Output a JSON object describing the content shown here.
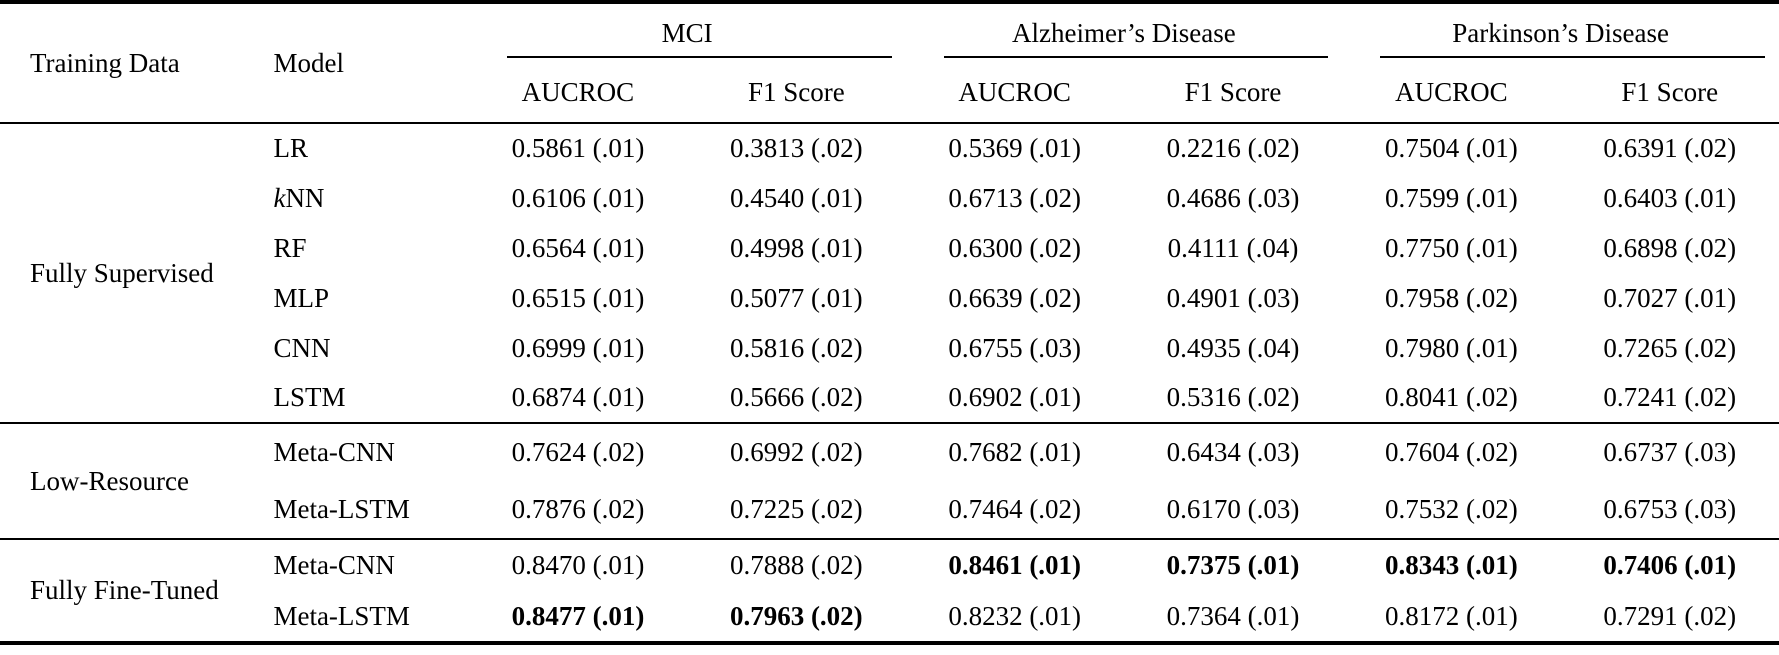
{
  "table": {
    "headers": {
      "training_data": "Training Data",
      "model": "Model",
      "groups": [
        {
          "label": "MCI",
          "sub": [
            "AUCROC",
            "F1 Score"
          ]
        },
        {
          "label": "Alzheimer’s Disease",
          "sub": [
            "AUCROC",
            "F1 Score"
          ]
        },
        {
          "label": "Parkinson’s Disease",
          "sub": [
            "AUCROC",
            "F1 Score"
          ]
        }
      ]
    },
    "row_groups": [
      {
        "label": "Fully Supervised",
        "rows": [
          {
            "model": "LR",
            "values": [
              "0.5861 (.01)",
              "0.3813 (.02)",
              "0.5369 (.01)",
              "0.2216 (.02)",
              "0.7504 (.01)",
              "0.6391 (.02)"
            ],
            "bold": [
              false,
              false,
              false,
              false,
              false,
              false
            ]
          },
          {
            "model": "kNN",
            "values": [
              "0.6106 (.01)",
              "0.4540 (.01)",
              "0.6713 (.02)",
              "0.4686 (.03)",
              "0.7599 (.01)",
              "0.6403 (.01)"
            ],
            "bold": [
              false,
              false,
              false,
              false,
              false,
              false
            ]
          },
          {
            "model": "RF",
            "values": [
              "0.6564 (.01)",
              "0.4998 (.01)",
              "0.6300 (.02)",
              "0.4111 (.04)",
              "0.7750 (.01)",
              "0.6898 (.02)"
            ],
            "bold": [
              false,
              false,
              false,
              false,
              false,
              false
            ]
          },
          {
            "model": "MLP",
            "values": [
              "0.6515 (.01)",
              "0.5077 (.01)",
              "0.6639 (.02)",
              "0.4901 (.03)",
              "0.7958 (.02)",
              "0.7027 (.01)"
            ],
            "bold": [
              false,
              false,
              false,
              false,
              false,
              false
            ]
          },
          {
            "model": "CNN",
            "values": [
              "0.6999 (.01)",
              "0.5816 (.02)",
              "0.6755 (.03)",
              "0.4935 (.04)",
              "0.7980 (.01)",
              "0.7265 (.02)"
            ],
            "bold": [
              false,
              false,
              false,
              false,
              false,
              false
            ]
          },
          {
            "model": "LSTM",
            "values": [
              "0.6874 (.01)",
              "0.5666 (.02)",
              "0.6902 (.01)",
              "0.5316 (.02)",
              "0.8041 (.02)",
              "0.7241 (.02)"
            ],
            "bold": [
              false,
              false,
              false,
              false,
              false,
              false
            ]
          }
        ]
      },
      {
        "label": "Low-Resource",
        "rows": [
          {
            "model": "Meta-CNN",
            "values": [
              "0.7624 (.02)",
              "0.6992 (.02)",
              "0.7682 (.01)",
              "0.6434 (.03)",
              "0.7604 (.02)",
              "0.6737 (.03)"
            ],
            "bold": [
              false,
              false,
              false,
              false,
              false,
              false
            ]
          },
          {
            "model": "Meta-LSTM",
            "values": [
              "0.7876 (.02)",
              "0.7225 (.02)",
              "0.7464 (.02)",
              "0.6170 (.03)",
              "0.7532 (.02)",
              "0.6753 (.03)"
            ],
            "bold": [
              false,
              false,
              false,
              false,
              false,
              false
            ]
          }
        ]
      },
      {
        "label": "Fully Fine-Tuned",
        "rows": [
          {
            "model": "Meta-CNN",
            "values": [
              "0.8470 (.01)",
              "0.7888 (.02)",
              "0.8461 (.01)",
              "0.7375 (.01)",
              "0.8343 (.01)",
              "0.7406 (.01)"
            ],
            "bold": [
              false,
              false,
              true,
              true,
              true,
              true
            ]
          },
          {
            "model": "Meta-LSTM",
            "values": [
              "0.8477 (.01)",
              "0.7963 (.02)",
              "0.8232 (.01)",
              "0.7364 (.01)",
              "0.8172 (.01)",
              "0.7291 (.02)"
            ],
            "bold": [
              true,
              true,
              false,
              false,
              false,
              false
            ]
          }
        ]
      }
    ]
  }
}
